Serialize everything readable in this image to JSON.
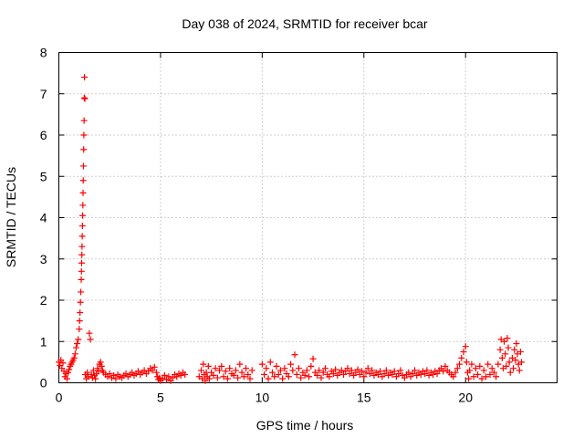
{
  "chart_data": {
    "type": "scatter",
    "title": "Day 038 of 2024, SRMTID for receiver bcar",
    "xlabel": "GPS time / hours",
    "ylabel": "SRMTID / TECUs",
    "xlim": [
      0,
      24.5
    ],
    "ylim": [
      0,
      8
    ],
    "xticks": [
      0,
      5,
      10,
      15,
      20
    ],
    "yticks": [
      0,
      1,
      2,
      3,
      4,
      5,
      6,
      7,
      8
    ],
    "grid": true,
    "marker": "+",
    "series_color": "#ff0000",
    "series": [
      {
        "name": "SRMTID",
        "points": [
          [
            0.0,
            0.5
          ],
          [
            0.05,
            0.42
          ],
          [
            0.1,
            0.55
          ],
          [
            0.15,
            0.35
          ],
          [
            0.2,
            0.48
          ],
          [
            0.25,
            0.28
          ],
          [
            0.3,
            0.15
          ],
          [
            0.35,
            0.22
          ],
          [
            0.4,
            0.1
          ],
          [
            0.45,
            0.25
          ],
          [
            0.5,
            0.32
          ],
          [
            0.55,
            0.4
          ],
          [
            0.6,
            0.45
          ],
          [
            0.65,
            0.5
          ],
          [
            0.7,
            0.55
          ],
          [
            0.75,
            0.6
          ],
          [
            0.8,
            0.7
          ],
          [
            0.85,
            0.85
          ],
          [
            0.9,
            0.95
          ],
          [
            0.95,
            1.05
          ],
          [
            1.0,
            1.3
          ],
          [
            1.02,
            1.5
          ],
          [
            1.04,
            1.7
          ],
          [
            1.06,
            1.95
          ],
          [
            1.08,
            2.2
          ],
          [
            1.1,
            2.5
          ],
          [
            1.11,
            2.7
          ],
          [
            1.12,
            2.9
          ],
          [
            1.13,
            3.1
          ],
          [
            1.14,
            3.3
          ],
          [
            1.15,
            3.55
          ],
          [
            1.16,
            3.8
          ],
          [
            1.17,
            4.05
          ],
          [
            1.18,
            4.3
          ],
          [
            1.19,
            4.6
          ],
          [
            1.2,
            4.9
          ],
          [
            1.21,
            5.25
          ],
          [
            1.22,
            5.65
          ],
          [
            1.23,
            6.0
          ],
          [
            1.24,
            6.35
          ],
          [
            1.25,
            6.9
          ],
          [
            1.26,
            7.4
          ],
          [
            1.28,
            6.88
          ],
          [
            1.3,
            0.2
          ],
          [
            1.35,
            0.1
          ],
          [
            1.4,
            0.25
          ],
          [
            1.45,
            0.15
          ],
          [
            1.5,
            1.2
          ],
          [
            1.55,
            1.05
          ],
          [
            1.6,
            0.2
          ],
          [
            1.65,
            0.12
          ],
          [
            1.7,
            0.3
          ],
          [
            1.75,
            0.18
          ],
          [
            1.8,
            0.1
          ],
          [
            1.85,
            0.22
          ],
          [
            1.9,
            0.35
          ],
          [
            1.95,
            0.28
          ],
          [
            2.0,
            0.45
          ],
          [
            2.05,
            0.5
          ],
          [
            2.1,
            0.4
          ],
          [
            2.15,
            0.3
          ],
          [
            2.2,
            0.25
          ],
          [
            2.3,
            0.2
          ],
          [
            2.4,
            0.15
          ],
          [
            2.5,
            0.22
          ],
          [
            2.6,
            0.12
          ],
          [
            2.7,
            0.18
          ],
          [
            2.8,
            0.1
          ],
          [
            2.9,
            0.2
          ],
          [
            3.0,
            0.15
          ],
          [
            3.1,
            0.12
          ],
          [
            3.2,
            0.18
          ],
          [
            3.3,
            0.22
          ],
          [
            3.4,
            0.15
          ],
          [
            3.5,
            0.2
          ],
          [
            3.6,
            0.25
          ],
          [
            3.7,
            0.18
          ],
          [
            3.8,
            0.22
          ],
          [
            3.9,
            0.28
          ],
          [
            4.0,
            0.2
          ],
          [
            4.1,
            0.25
          ],
          [
            4.2,
            0.3
          ],
          [
            4.3,
            0.22
          ],
          [
            4.4,
            0.28
          ],
          [
            4.5,
            0.35
          ],
          [
            4.6,
            0.3
          ],
          [
            4.7,
            0.38
          ],
          [
            4.8,
            0.25
          ],
          [
            4.85,
            0.15
          ],
          [
            4.9,
            0.08
          ],
          [
            4.95,
            0.12
          ],
          [
            5.0,
            0.05
          ],
          [
            5.1,
            0.1
          ],
          [
            5.2,
            0.18
          ],
          [
            5.3,
            0.08
          ],
          [
            5.4,
            0.15
          ],
          [
            5.5,
            0.05
          ],
          [
            5.6,
            0.12
          ],
          [
            5.7,
            0.2
          ],
          [
            5.8,
            0.15
          ],
          [
            5.9,
            0.22
          ],
          [
            6.0,
            0.18
          ],
          [
            6.1,
            0.25
          ],
          [
            6.2,
            0.2
          ],
          [
            6.9,
            0.15
          ],
          [
            7.0,
            0.3
          ],
          [
            7.05,
            0.1
          ],
          [
            7.1,
            0.45
          ],
          [
            7.15,
            0.2
          ],
          [
            7.2,
            0.05
          ],
          [
            7.25,
            0.25
          ],
          [
            7.3,
            0.15
          ],
          [
            7.35,
            0.4
          ],
          [
            7.4,
            0.1
          ],
          [
            7.5,
            0.25
          ],
          [
            7.6,
            0.18
          ],
          [
            7.7,
            0.35
          ],
          [
            7.8,
            0.12
          ],
          [
            7.9,
            0.3
          ],
          [
            8.0,
            0.4
          ],
          [
            8.1,
            0.15
          ],
          [
            8.2,
            0.28
          ],
          [
            8.3,
            0.1
          ],
          [
            8.4,
            0.35
          ],
          [
            8.5,
            0.22
          ],
          [
            8.6,
            0.18
          ],
          [
            8.7,
            0.3
          ],
          [
            8.8,
            0.12
          ],
          [
            8.9,
            0.45
          ],
          [
            9.0,
            0.25
          ],
          [
            9.1,
            0.15
          ],
          [
            9.2,
            0.35
          ],
          [
            9.3,
            0.2
          ],
          [
            9.4,
            0.1
          ],
          [
            9.5,
            0.3
          ],
          [
            10.0,
            0.45
          ],
          [
            10.1,
            0.2
          ],
          [
            10.2,
            0.35
          ],
          [
            10.3,
            0.1
          ],
          [
            10.4,
            0.5
          ],
          [
            10.5,
            0.25
          ],
          [
            10.6,
            0.15
          ],
          [
            10.7,
            0.4
          ],
          [
            10.8,
            0.2
          ],
          [
            10.9,
            0.3
          ],
          [
            11.0,
            0.1
          ],
          [
            11.1,
            0.35
          ],
          [
            11.2,
            0.22
          ],
          [
            11.3,
            0.15
          ],
          [
            11.4,
            0.45
          ],
          [
            11.5,
            0.3
          ],
          [
            11.6,
            0.68
          ],
          [
            11.7,
            0.2
          ],
          [
            11.8,
            0.35
          ],
          [
            11.9,
            0.12
          ],
          [
            12.0,
            0.25
          ],
          [
            12.1,
            0.18
          ],
          [
            12.2,
            0.3
          ],
          [
            12.3,
            0.15
          ],
          [
            12.4,
            0.4
          ],
          [
            12.5,
            0.58
          ],
          [
            12.6,
            0.25
          ],
          [
            12.7,
            0.18
          ],
          [
            12.8,
            0.3
          ],
          [
            12.9,
            0.12
          ],
          [
            13.0,
            0.25
          ],
          [
            13.1,
            0.35
          ],
          [
            13.2,
            0.2
          ],
          [
            13.3,
            0.15
          ],
          [
            13.4,
            0.28
          ],
          [
            13.5,
            0.22
          ],
          [
            13.6,
            0.32
          ],
          [
            13.7,
            0.18
          ],
          [
            13.8,
            0.25
          ],
          [
            13.9,
            0.3
          ],
          [
            14.0,
            0.2
          ],
          [
            14.1,
            0.28
          ],
          [
            14.2,
            0.35
          ],
          [
            14.3,
            0.22
          ],
          [
            14.4,
            0.3
          ],
          [
            14.5,
            0.18
          ],
          [
            14.6,
            0.25
          ],
          [
            14.7,
            0.32
          ],
          [
            14.8,
            0.2
          ],
          [
            14.9,
            0.28
          ],
          [
            15.0,
            0.15
          ],
          [
            15.1,
            0.25
          ],
          [
            15.2,
            0.35
          ],
          [
            15.3,
            0.22
          ],
          [
            15.4,
            0.3
          ],
          [
            15.5,
            0.18
          ],
          [
            15.6,
            0.25
          ],
          [
            15.7,
            0.2
          ],
          [
            15.8,
            0.28
          ],
          [
            15.9,
            0.15
          ],
          [
            16.0,
            0.22
          ],
          [
            16.1,
            0.3
          ],
          [
            16.2,
            0.18
          ],
          [
            16.3,
            0.25
          ],
          [
            16.4,
            0.2
          ],
          [
            16.5,
            0.28
          ],
          [
            16.6,
            0.15
          ],
          [
            16.7,
            0.22
          ],
          [
            16.8,
            0.3
          ],
          [
            16.9,
            0.18
          ],
          [
            17.0,
            0.12
          ],
          [
            17.1,
            0.2
          ],
          [
            17.2,
            0.25
          ],
          [
            17.3,
            0.15
          ],
          [
            17.4,
            0.22
          ],
          [
            17.5,
            0.3
          ],
          [
            17.6,
            0.18
          ],
          [
            17.7,
            0.25
          ],
          [
            17.8,
            0.2
          ],
          [
            17.9,
            0.28
          ],
          [
            18.0,
            0.22
          ],
          [
            18.1,
            0.3
          ],
          [
            18.2,
            0.18
          ],
          [
            18.3,
            0.25
          ],
          [
            18.4,
            0.2
          ],
          [
            18.5,
            0.28
          ],
          [
            18.6,
            0.22
          ],
          [
            18.7,
            0.3
          ],
          [
            18.8,
            0.35
          ],
          [
            18.9,
            0.28
          ],
          [
            19.0,
            0.4
          ],
          [
            19.1,
            0.3
          ],
          [
            19.2,
            0.25
          ],
          [
            19.3,
            0.2
          ],
          [
            19.4,
            0.15
          ],
          [
            19.5,
            0.25
          ],
          [
            19.6,
            0.35
          ],
          [
            19.7,
            0.45
          ],
          [
            19.8,
            0.6
          ],
          [
            19.9,
            0.75
          ],
          [
            20.0,
            0.88
          ],
          [
            20.05,
            0.5
          ],
          [
            20.1,
            0.25
          ],
          [
            20.15,
            0.1
          ],
          [
            20.2,
            0.3
          ],
          [
            20.3,
            0.45
          ],
          [
            20.4,
            0.15
          ],
          [
            20.5,
            0.35
          ],
          [
            20.6,
            0.2
          ],
          [
            20.7,
            0.4
          ],
          [
            20.8,
            0.1
          ],
          [
            20.9,
            0.3
          ],
          [
            21.0,
            0.15
          ],
          [
            21.1,
            0.45
          ],
          [
            21.2,
            0.2
          ],
          [
            21.3,
            0.35
          ],
          [
            21.4,
            0.25
          ],
          [
            21.5,
            0.15
          ],
          [
            21.6,
            0.45
          ],
          [
            21.7,
            0.8
          ],
          [
            21.75,
            1.05
          ],
          [
            21.8,
            0.6
          ],
          [
            21.85,
            0.35
          ],
          [
            21.9,
            1.0
          ],
          [
            21.95,
            0.7
          ],
          [
            22.0,
            0.4
          ],
          [
            22.05,
            1.08
          ],
          [
            22.1,
            0.85
          ],
          [
            22.15,
            0.5
          ],
          [
            22.2,
            0.25
          ],
          [
            22.3,
            0.6
          ],
          [
            22.35,
            0.35
          ],
          [
            22.4,
            0.8
          ],
          [
            22.45,
            0.55
          ],
          [
            22.5,
            0.95
          ],
          [
            22.55,
            0.7
          ],
          [
            22.6,
            0.45
          ],
          [
            22.65,
            0.3
          ],
          [
            22.7,
            0.75
          ],
          [
            22.75,
            0.5
          ]
        ]
      }
    ]
  }
}
